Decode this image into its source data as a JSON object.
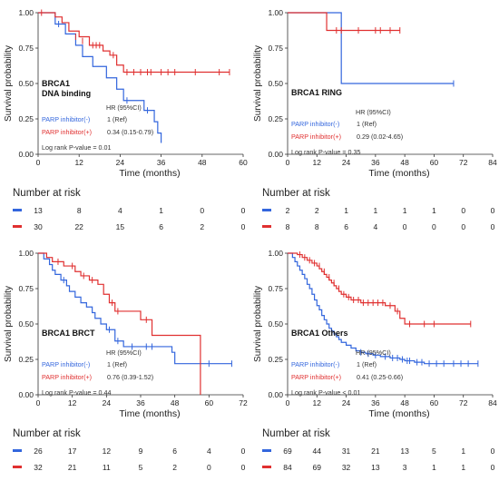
{
  "chart_data": [
    {
      "type": "line",
      "subtype": "kaplan-meier",
      "panel_label": "BRCA1\nDNA binding",
      "xlabel": "Time (months)",
      "ylabel": "Survival probability",
      "xticks": [
        0,
        12,
        24,
        36,
        48,
        60
      ],
      "yticks": [
        "0.00",
        "0.25",
        "0.50",
        "0.75",
        "1.00"
      ],
      "xlim": [
        0,
        60
      ],
      "ylim": [
        0,
        1
      ],
      "hr_header": "HR (95%CI)",
      "series": [
        {
          "name": "PARP inhibitor(-)",
          "hr": "1 (Ref)",
          "color": "#3366dd",
          "steps": [
            [
              0,
              1.0
            ],
            [
              3,
              1.0
            ],
            [
              5,
              0.92
            ],
            [
              8,
              0.85
            ],
            [
              11,
              0.77
            ],
            [
              13,
              0.69
            ],
            [
              16,
              0.62
            ],
            [
              20,
              0.54
            ],
            [
              23,
              0.46
            ],
            [
              25,
              0.38
            ],
            [
              31,
              0.31
            ],
            [
              34,
              0.23
            ],
            [
              35,
              0.15
            ],
            [
              36,
              0.08
            ]
          ],
          "censors": [
            [
              6,
              0.92
            ],
            [
              26,
              0.38
            ],
            [
              32,
              0.31
            ]
          ]
        },
        {
          "name": "PARP inhibitor(+)",
          "hr": "0.34 (0.15-0.79)",
          "color": "#e03030",
          "steps": [
            [
              0,
              1.0
            ],
            [
              3,
              1.0
            ],
            [
              5,
              0.97
            ],
            [
              7,
              0.93
            ],
            [
              9,
              0.87
            ],
            [
              12,
              0.83
            ],
            [
              15,
              0.77
            ],
            [
              19,
              0.73
            ],
            [
              21,
              0.7
            ],
            [
              23,
              0.63
            ],
            [
              25,
              0.58
            ],
            [
              56,
              0.58
            ]
          ],
          "censors": [
            [
              1,
              1.0
            ],
            [
              11,
              0.83
            ],
            [
              13,
              0.8
            ],
            [
              16,
              0.77
            ],
            [
              17,
              0.77
            ],
            [
              18,
              0.77
            ],
            [
              22,
              0.7
            ],
            [
              26,
              0.58
            ],
            [
              28,
              0.58
            ],
            [
              30,
              0.58
            ],
            [
              32,
              0.58
            ],
            [
              33,
              0.58
            ],
            [
              36,
              0.58
            ],
            [
              38,
              0.58
            ],
            [
              40,
              0.58
            ],
            [
              46,
              0.58
            ],
            [
              53,
              0.58
            ],
            [
              56,
              0.58
            ]
          ]
        }
      ],
      "logrank": "Log rank P-value = 0.01",
      "risk_title": "Number at risk",
      "risk_rows": [
        {
          "color": "#3366dd",
          "values": [
            "13",
            "8",
            "4",
            "1",
            "0",
            "0"
          ]
        },
        {
          "color": "#e03030",
          "values": [
            "30",
            "22",
            "15",
            "6",
            "2",
            "0"
          ]
        }
      ]
    },
    {
      "type": "line",
      "subtype": "kaplan-meier",
      "panel_label": "BRCA1 RING",
      "xlabel": "Time (months)",
      "ylabel": "Survival probability",
      "xticks": [
        0,
        12,
        24,
        36,
        48,
        60,
        72,
        84
      ],
      "yticks": [
        "0.00",
        "0.25",
        "0.50",
        "0.75",
        "1.00"
      ],
      "xlim": [
        0,
        84
      ],
      "ylim": [
        0,
        1
      ],
      "hr_header": "HR (95%CI)",
      "series": [
        {
          "name": "PARP inhibitor(-)",
          "hr": "1 (Ref)",
          "color": "#3366dd",
          "steps": [
            [
              0,
              1.0
            ],
            [
              21,
              1.0
            ],
            [
              22,
              0.5
            ],
            [
              68,
              0.5
            ]
          ],
          "censors": [
            [
              68,
              0.5
            ]
          ]
        },
        {
          "name": "PARP inhibitor(+)",
          "hr": "0.29 (0.02-4.65)",
          "color": "#e03030",
          "steps": [
            [
              0,
              1.0
            ],
            [
              15,
              1.0
            ],
            [
              16,
              0.875
            ],
            [
              46,
              0.875
            ]
          ],
          "censors": [
            [
              20,
              0.875
            ],
            [
              22,
              0.875
            ],
            [
              29,
              0.875
            ],
            [
              36,
              0.875
            ],
            [
              38,
              0.875
            ],
            [
              42,
              0.875
            ],
            [
              46,
              0.875
            ]
          ]
        }
      ],
      "logrank": "Log rank P-value = 0.35",
      "risk_title": "Number at risk",
      "risk_rows": [
        {
          "color": "#3366dd",
          "values": [
            "2",
            "2",
            "1",
            "1",
            "1",
            "1",
            "0",
            "0"
          ]
        },
        {
          "color": "#e03030",
          "values": [
            "8",
            "8",
            "6",
            "4",
            "0",
            "0",
            "0",
            "0"
          ]
        }
      ]
    },
    {
      "type": "line",
      "subtype": "kaplan-meier",
      "panel_label": "BRCA1 BRCT",
      "xlabel": "Time (months)",
      "ylabel": "Survival probability",
      "xticks": [
        0,
        12,
        24,
        36,
        48,
        60,
        72
      ],
      "yticks": [
        "0.00",
        "0.25",
        "0.50",
        "0.75",
        "1.00"
      ],
      "xlim": [
        0,
        72
      ],
      "ylim": [
        0,
        1
      ],
      "hr_header": "HR (95%CI)",
      "series": [
        {
          "name": "PARP inhibitor(-)",
          "hr": "1 (Ref)",
          "color": "#3366dd",
          "steps": [
            [
              0,
              1.0
            ],
            [
              2,
              0.96
            ],
            [
              4,
              0.92
            ],
            [
              5,
              0.88
            ],
            [
              6,
              0.85
            ],
            [
              8,
              0.81
            ],
            [
              10,
              0.77
            ],
            [
              11,
              0.73
            ],
            [
              13,
              0.69
            ],
            [
              15,
              0.65
            ],
            [
              17,
              0.62
            ],
            [
              19,
              0.58
            ],
            [
              20,
              0.54
            ],
            [
              22,
              0.5
            ],
            [
              24,
              0.46
            ],
            [
              27,
              0.38
            ],
            [
              30,
              0.34
            ],
            [
              47,
              0.3
            ],
            [
              48,
              0.22
            ],
            [
              68,
              0.22
            ]
          ],
          "censors": [
            [
              9,
              0.81
            ],
            [
              25,
              0.46
            ],
            [
              28,
              0.38
            ],
            [
              33,
              0.34
            ],
            [
              38,
              0.34
            ],
            [
              40,
              0.34
            ],
            [
              60,
              0.22
            ],
            [
              68,
              0.22
            ]
          ]
        },
        {
          "name": "PARP inhibitor(+)",
          "hr": "0.76 (0.39-1.52)",
          "color": "#e03030",
          "steps": [
            [
              0,
              1.0
            ],
            [
              3,
              0.97
            ],
            [
              5,
              0.94
            ],
            [
              9,
              0.91
            ],
            [
              13,
              0.87
            ],
            [
              15,
              0.84
            ],
            [
              18,
              0.81
            ],
            [
              21,
              0.78
            ],
            [
              23,
              0.71
            ],
            [
              25,
              0.65
            ],
            [
              27,
              0.59
            ],
            [
              36,
              0.53
            ],
            [
              40,
              0.42
            ],
            [
              57,
              0.42
            ],
            [
              57,
              0.0
            ]
          ],
          "censors": [
            [
              7,
              0.94
            ],
            [
              12,
              0.91
            ],
            [
              16,
              0.84
            ],
            [
              19,
              0.81
            ],
            [
              26,
              0.65
            ],
            [
              28,
              0.59
            ],
            [
              38,
              0.53
            ]
          ]
        }
      ],
      "logrank": "Log rank P-value = 0.44",
      "risk_title": "Number at risk",
      "risk_rows": [
        {
          "color": "#3366dd",
          "values": [
            "26",
            "17",
            "12",
            "9",
            "6",
            "4",
            "0"
          ]
        },
        {
          "color": "#e03030",
          "values": [
            "32",
            "21",
            "11",
            "5",
            "2",
            "0",
            "0"
          ]
        }
      ]
    },
    {
      "type": "line",
      "subtype": "kaplan-meier",
      "panel_label": "BRCA1 Others",
      "xlabel": "Time (months)",
      "ylabel": "Survival probability",
      "xticks": [
        0,
        12,
        24,
        36,
        48,
        60,
        72,
        84
      ],
      "yticks": [
        "0.00",
        "0.25",
        "0.50",
        "0.75",
        "1.00"
      ],
      "xlim": [
        0,
        84
      ],
      "ylim": [
        0,
        1
      ],
      "hr_header": "HR (95%CI)",
      "series": [
        {
          "name": "PARP inhibitor(-)",
          "hr": "1 (Ref)",
          "color": "#3366dd",
          "steps": [
            [
              0,
              1.0
            ],
            [
              2,
              0.97
            ],
            [
              3,
              0.94
            ],
            [
              4,
              0.91
            ],
            [
              5,
              0.88
            ],
            [
              6,
              0.85
            ],
            [
              7,
              0.82
            ],
            [
              8,
              0.78
            ],
            [
              9,
              0.75
            ],
            [
              10,
              0.71
            ],
            [
              11,
              0.67
            ],
            [
              12,
              0.63
            ],
            [
              13,
              0.6
            ],
            [
              14,
              0.56
            ],
            [
              15,
              0.53
            ],
            [
              16,
              0.5
            ],
            [
              17,
              0.47
            ],
            [
              18,
              0.45
            ],
            [
              19,
              0.43
            ],
            [
              20,
              0.41
            ],
            [
              21,
              0.39
            ],
            [
              22,
              0.37
            ],
            [
              24,
              0.35
            ],
            [
              26,
              0.33
            ],
            [
              28,
              0.31
            ],
            [
              30,
              0.3
            ],
            [
              32,
              0.29
            ],
            [
              35,
              0.28
            ],
            [
              38,
              0.27
            ],
            [
              42,
              0.26
            ],
            [
              46,
              0.25
            ],
            [
              48,
              0.24
            ],
            [
              52,
              0.23
            ],
            [
              56,
              0.22
            ],
            [
              78,
              0.22
            ]
          ],
          "censors": [
            [
              30,
              0.3
            ],
            [
              33,
              0.29
            ],
            [
              36,
              0.28
            ],
            [
              40,
              0.27
            ],
            [
              43,
              0.26
            ],
            [
              45,
              0.26
            ],
            [
              47,
              0.25
            ],
            [
              49,
              0.24
            ],
            [
              50,
              0.24
            ],
            [
              53,
              0.23
            ],
            [
              55,
              0.23
            ],
            [
              58,
              0.22
            ],
            [
              61,
              0.22
            ],
            [
              64,
              0.22
            ],
            [
              68,
              0.22
            ],
            [
              71,
              0.22
            ],
            [
              74,
              0.22
            ],
            [
              78,
              0.22
            ]
          ]
        },
        {
          "name": "PARP inhibitor(+)",
          "hr": "0.41 (0.25-0.66)",
          "color": "#e03030",
          "steps": [
            [
              0,
              1.0
            ],
            [
              4,
              0.99
            ],
            [
              6,
              0.97
            ],
            [
              8,
              0.95
            ],
            [
              10,
              0.93
            ],
            [
              12,
              0.91
            ],
            [
              13,
              0.89
            ],
            [
              14,
              0.87
            ],
            [
              15,
              0.85
            ],
            [
              16,
              0.83
            ],
            [
              17,
              0.81
            ],
            [
              18,
              0.79
            ],
            [
              19,
              0.77
            ],
            [
              20,
              0.75
            ],
            [
              21,
              0.73
            ],
            [
              22,
              0.71
            ],
            [
              24,
              0.69
            ],
            [
              26,
              0.67
            ],
            [
              30,
              0.65
            ],
            [
              40,
              0.63
            ],
            [
              44,
              0.59
            ],
            [
              46,
              0.54
            ],
            [
              48,
              0.5
            ],
            [
              75,
              0.5
            ]
          ],
          "censors": [
            [
              5,
              0.99
            ],
            [
              7,
              0.97
            ],
            [
              9,
              0.95
            ],
            [
              11,
              0.93
            ],
            [
              13,
              0.91
            ],
            [
              15,
              0.87
            ],
            [
              17,
              0.83
            ],
            [
              19,
              0.79
            ],
            [
              21,
              0.75
            ],
            [
              23,
              0.71
            ],
            [
              25,
              0.69
            ],
            [
              27,
              0.67
            ],
            [
              29,
              0.67
            ],
            [
              31,
              0.65
            ],
            [
              33,
              0.65
            ],
            [
              35,
              0.65
            ],
            [
              37,
              0.65
            ],
            [
              39,
              0.65
            ],
            [
              42,
              0.63
            ],
            [
              45,
              0.59
            ],
            [
              50,
              0.5
            ],
            [
              56,
              0.5
            ],
            [
              60,
              0.5
            ],
            [
              75,
              0.5
            ]
          ]
        }
      ],
      "logrank": "Log rank P-value < 0.01",
      "risk_title": "Number at risk",
      "risk_rows": [
        {
          "color": "#3366dd",
          "values": [
            "69",
            "44",
            "31",
            "21",
            "13",
            "5",
            "1",
            "0"
          ]
        },
        {
          "color": "#e03030",
          "values": [
            "84",
            "69",
            "32",
            "13",
            "3",
            "1",
            "1",
            "0"
          ]
        }
      ]
    }
  ]
}
